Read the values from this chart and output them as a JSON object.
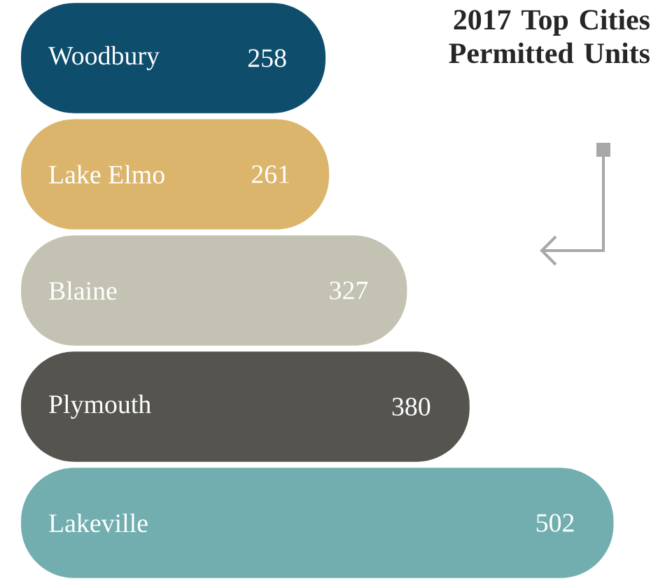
{
  "chart_data": {
    "type": "bar",
    "orientation": "horizontal",
    "title": "2017 Top Cities Permitted Units",
    "categories": [
      "Woodbury",
      "Lake Elmo",
      "Blaine",
      "Plymouth",
      "Lakeville"
    ],
    "values": [
      258,
      261,
      327,
      380,
      502
    ],
    "colors": [
      "#0e4d6b",
      "#dbb56c",
      "#c4c2b2",
      "#55544f",
      "#72aeb0"
    ],
    "data_labels": true
  }
}
